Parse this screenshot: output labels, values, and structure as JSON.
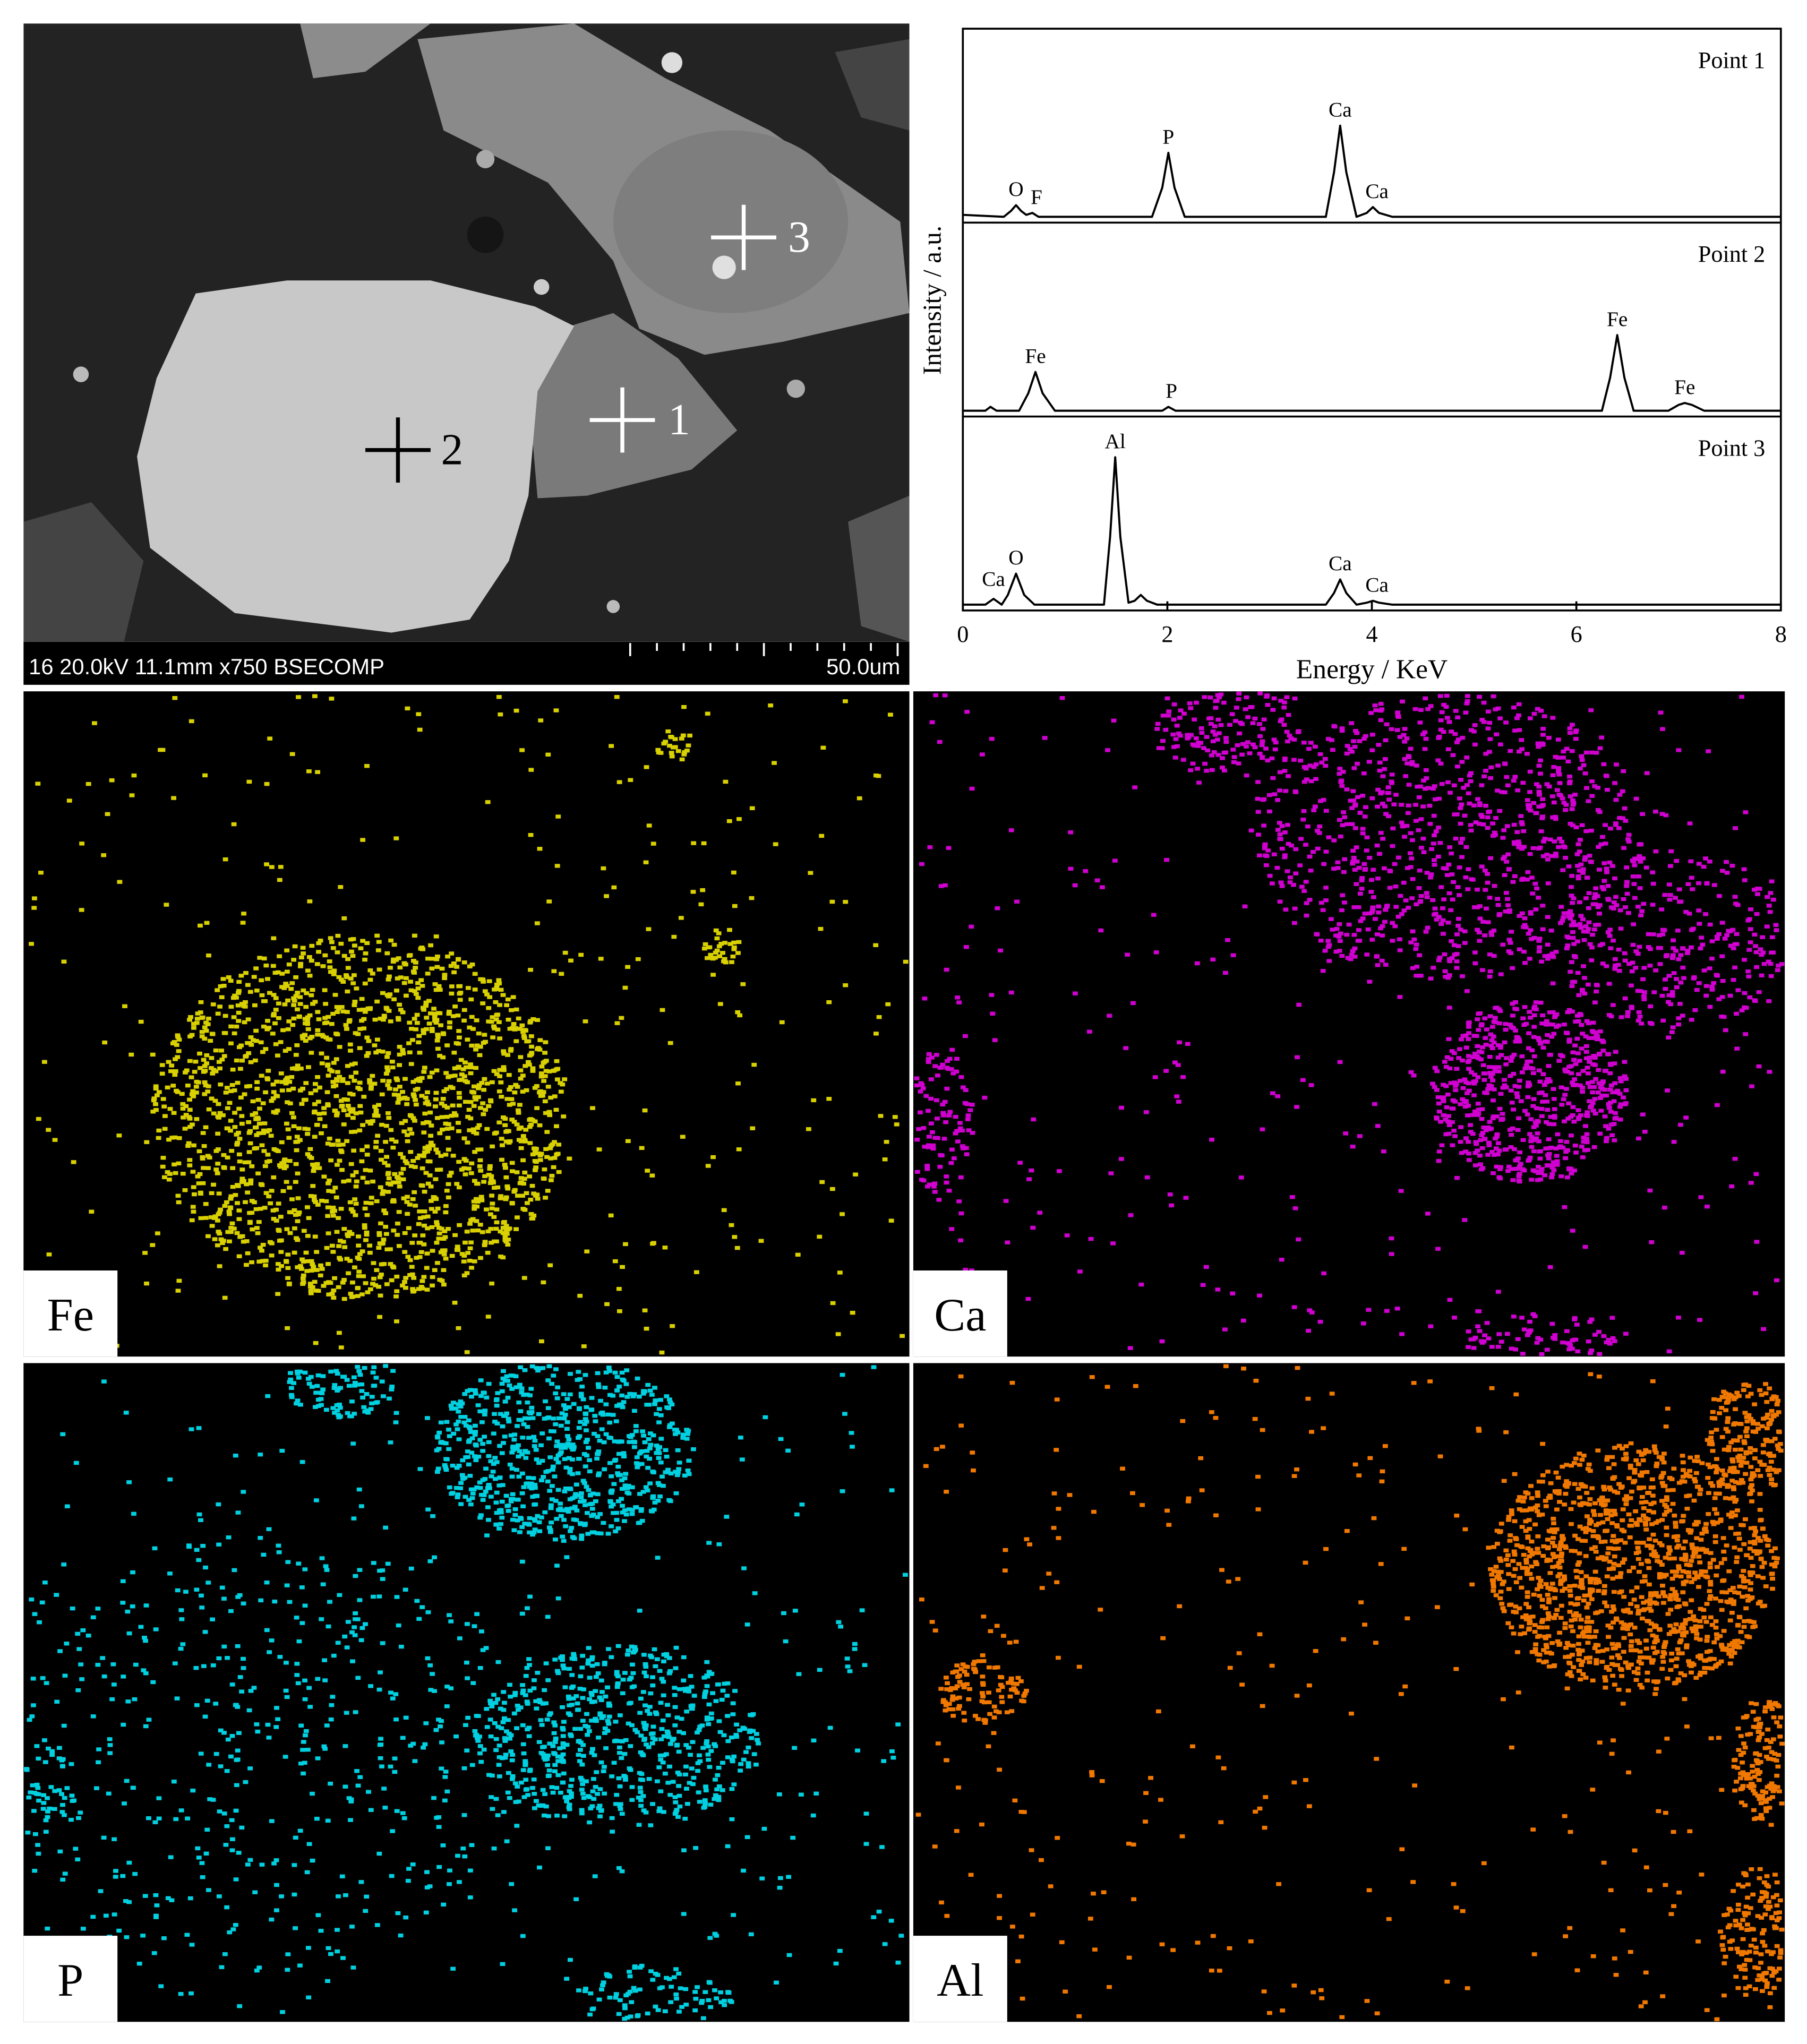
{
  "sem_image": {
    "info": "16 20.0kV 11.1mm x750 BSECOMP",
    "scale_bar": "50.0um",
    "points": [
      "1",
      "2",
      "3"
    ]
  },
  "chart_data": {
    "type": "line",
    "xlabel": "Energy / KeV",
    "ylabel": "Intensity / a.u.",
    "xlim": [
      0,
      8
    ],
    "xticks": [
      0,
      2,
      4,
      6,
      8
    ],
    "ylim": [
      0,
      100
    ],
    "color": "#000000",
    "panels": [
      {
        "label": "Point 1",
        "x": [
          0,
          0.4,
          0.47,
          0.52,
          0.57,
          0.62,
          0.68,
          0.74,
          1.85,
          1.95,
          2.01,
          2.07,
          2.17,
          3.55,
          3.63,
          3.69,
          3.75,
          3.85,
          3.95,
          4.01,
          4.07,
          4.2,
          8
        ],
        "values": [
          4,
          3,
          6,
          9,
          6,
          4,
          5,
          3,
          3,
          18,
          36,
          18,
          3,
          3,
          26,
          50,
          26,
          3,
          5,
          8,
          5,
          3,
          3
        ],
        "annotations": [
          {
            "text": "O",
            "x": 0.52
          },
          {
            "text": "F",
            "x": 0.72
          },
          {
            "text": "P",
            "x": 2.01
          },
          {
            "text": "Ca",
            "x": 3.69
          },
          {
            "text": "Ca",
            "x": 4.05
          }
        ]
      },
      {
        "label": "Point 2",
        "x": [
          0,
          0.22,
          0.27,
          0.33,
          0.55,
          0.64,
          0.71,
          0.78,
          0.9,
          1.95,
          2.01,
          2.08,
          6.25,
          6.33,
          6.4,
          6.47,
          6.56,
          6.9,
          7.0,
          7.06,
          7.13,
          7.25,
          8
        ],
        "values": [
          3,
          3,
          5,
          3,
          3,
          12,
          23,
          12,
          3,
          3,
          5,
          3,
          3,
          20,
          42,
          20,
          3,
          3,
          6,
          7,
          6,
          3,
          3
        ],
        "annotations": [
          {
            "text": "Fe",
            "x": 0.71
          },
          {
            "text": "P",
            "x": 2.04
          },
          {
            "text": "Fe",
            "x": 6.4
          },
          {
            "text": "Fe",
            "x": 7.06
          }
        ]
      },
      {
        "label": "Point 3",
        "x": [
          0,
          0.22,
          0.3,
          0.38,
          0.44,
          0.52,
          0.6,
          0.7,
          1.38,
          1.44,
          1.49,
          1.54,
          1.62,
          1.68,
          1.74,
          1.8,
          1.9,
          3.55,
          3.63,
          3.69,
          3.75,
          3.85,
          3.95,
          4.01,
          4.07,
          4.2,
          8
        ],
        "values": [
          3,
          3,
          6,
          3,
          8,
          19,
          8,
          3,
          3,
          38,
          79,
          38,
          4,
          5,
          8,
          5,
          3,
          3,
          9,
          16,
          9,
          3,
          4,
          5,
          4,
          3,
          3
        ],
        "annotations": [
          {
            "text": "Ca",
            "x": 0.3
          },
          {
            "text": "O",
            "x": 0.52
          },
          {
            "text": "Al",
            "x": 1.49
          },
          {
            "text": "Ca",
            "x": 3.69
          },
          {
            "text": "Ca",
            "x": 4.05
          }
        ]
      }
    ]
  },
  "element_maps": [
    "Fe",
    "Ca",
    "P",
    "Al"
  ]
}
